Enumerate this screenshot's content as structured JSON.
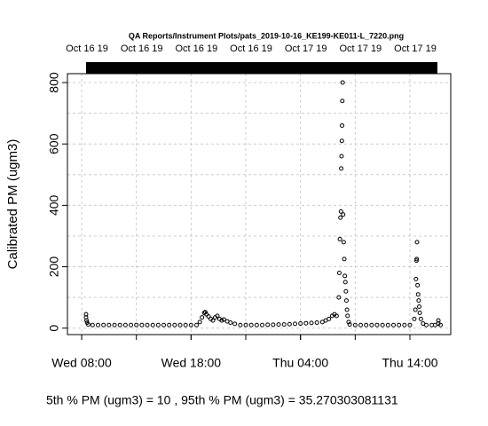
{
  "chart_data": {
    "type": "scatter",
    "title": "QA Reports/Instrument Plots/pats_2019-10-16_KE199-KE011-L_7220.png",
    "y_label": "Calibrated PM (ugm3)",
    "footer": "5th % PM (ugm3) =  10 , 95th % PM (ugm3)  =  35.270303081131",
    "xlim": [
      6.7,
      41.73
    ],
    "xticks": [
      {
        "value": 8,
        "label": "Wed 08:00"
      },
      {
        "value": 18,
        "label": "Wed 18:00"
      },
      {
        "value": 28,
        "label": "Thu 04:00"
      },
      {
        "value": 38,
        "label": "Thu 14:00"
      }
    ],
    "x2ticks": [
      {
        "value": 8,
        "label": "Oct 16 19"
      },
      {
        "value": 13,
        "label": "Oct 16 19"
      },
      {
        "value": 18,
        "label": "Oct 16 19"
      },
      {
        "value": 23,
        "label": "Oct 16 19"
      },
      {
        "value": 28,
        "label": "Oct 17 19"
      },
      {
        "value": 33,
        "label": "Oct 17 19"
      },
      {
        "value": 38,
        "label": "Oct 17 19"
      }
    ],
    "ylim": [
      -21,
      829
    ],
    "yticks": [
      0,
      200,
      400,
      600,
      800
    ],
    "ygrid": [
      0,
      100,
      200,
      300,
      400,
      500,
      600,
      700,
      800
    ],
    "grid": true,
    "color": "#000000",
    "series": [
      {
        "x": [
          8.4,
          8.4,
          8.45,
          8.5,
          8.6,
          9,
          9.5,
          10,
          10.5,
          11,
          11.5,
          12,
          12.5,
          13,
          13.5,
          14,
          14.5,
          15,
          15.5,
          16,
          16.5,
          17,
          17.5,
          18,
          18.5,
          18.8,
          19.0,
          19.2,
          19.3,
          19.4,
          19.6,
          19.8,
          20.0,
          20.2,
          20.4,
          20.6,
          20.8,
          21.0,
          21.3,
          21.6,
          22.0,
          22.5,
          23,
          23.5,
          24,
          24.5,
          25,
          25.5,
          26,
          26.5,
          27,
          27.5,
          28,
          28.5,
          29,
          29.5,
          30,
          30.3,
          30.6,
          30.9,
          31.1,
          31.3,
          31.5,
          31.55,
          31.6,
          31.65,
          31.7,
          31.72,
          31.75,
          31.78,
          31.8,
          31.82,
          31.85,
          31.9,
          31.95,
          32.0,
          32.05,
          32.1,
          32.15,
          32.2,
          32.25,
          32.3,
          32.4,
          32.5,
          33,
          33.5,
          34,
          34.5,
          35,
          35.5,
          36,
          36.5,
          37,
          37.5,
          38,
          38.4,
          38.5,
          38.55,
          38.6,
          38.62,
          38.65,
          38.7,
          38.75,
          38.8,
          38.85,
          38.9,
          39.0,
          39.2,
          39.5,
          40,
          40.3,
          40.6,
          40.6,
          40.8
        ],
        "values": [
          45,
          35,
          25,
          18,
          12,
          10,
          10,
          10,
          10,
          10,
          10,
          10,
          10,
          10,
          10,
          10,
          10,
          10,
          10,
          10,
          10,
          10,
          10,
          10,
          10,
          20,
          35,
          50,
          52,
          45,
          38,
          30,
          25,
          35,
          40,
          30,
          25,
          28,
          22,
          18,
          14,
          10,
          10,
          10,
          10,
          10,
          11,
          11,
          12,
          12,
          13,
          14,
          15,
          16,
          17,
          18,
          20,
          25,
          30,
          40,
          45,
          40,
          100,
          180,
          290,
          360,
          380,
          520,
          560,
          610,
          660,
          740,
          800,
          370,
          280,
          225,
          170,
          150,
          120,
          90,
          60,
          40,
          20,
          12,
          10,
          10,
          10,
          10,
          10,
          10,
          10,
          10,
          10,
          10,
          10,
          30,
          60,
          160,
          220,
          225,
          280,
          140,
          110,
          90,
          70,
          50,
          30,
          15,
          10,
          10,
          10,
          25,
          15,
          10
        ]
      }
    ]
  }
}
